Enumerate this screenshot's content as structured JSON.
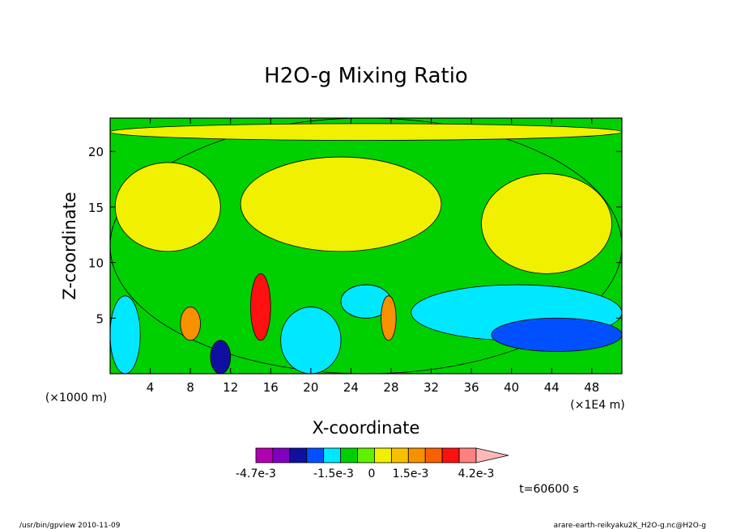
{
  "chart_data": {
    "type": "heatmap",
    "title": "H2O-g Mixing Ratio",
    "xlabel": "X-coordinate",
    "ylabel": "Z-coordinate",
    "x_unit_left": "(×1000 m)",
    "x_unit_right": "(×1E4 m)",
    "xlim": [
      0,
      51
    ],
    "ylim": [
      0,
      23
    ],
    "x_ticks": [
      "4",
      "8",
      "12",
      "16",
      "20",
      "24",
      "28",
      "32",
      "36",
      "40",
      "44",
      "48"
    ],
    "y_ticks": [
      "5",
      "10",
      "15",
      "20"
    ],
    "colorbar": {
      "colors": [
        "#b000b0",
        "#8000c0",
        "#1010a0",
        "#0050ff",
        "#00e8ff",
        "#00d000",
        "#60f000",
        "#f0f000",
        "#f8c000",
        "#f89000",
        "#f86000",
        "#ff1010",
        "#ff8080",
        "#ffb8b8"
      ],
      "labels": [
        "-4.7e-3",
        "-1.5e-3",
        "0",
        "1.5e-3",
        "4.2e-3"
      ],
      "extends": "right"
    },
    "time_label": "t=60600 s",
    "footer_left": "/usr/bin/gpview  2010-11-09",
    "footer_right": "arare-earth-reikyaku2K_H2O-g.nc@H2O-g",
    "field_regions": [
      {
        "level": "green",
        "x": [
          0,
          51
        ],
        "z": [
          0,
          23
        ]
      },
      {
        "level": "yellow",
        "x": [
          0.5,
          11
        ],
        "z": [
          11,
          19
        ]
      },
      {
        "level": "yellow",
        "x": [
          13,
          33
        ],
        "z": [
          11,
          19.5
        ]
      },
      {
        "level": "yellow",
        "x": [
          37,
          50
        ],
        "z": [
          9,
          18
        ]
      },
      {
        "level": "yellow",
        "x": [
          0,
          51
        ],
        "z": [
          21,
          22.5
        ]
      },
      {
        "level": "cyan",
        "x": [
          0,
          3
        ],
        "z": [
          0,
          7
        ]
      },
      {
        "level": "cyan",
        "x": [
          23,
          28
        ],
        "z": [
          5,
          8
        ]
      },
      {
        "level": "cyan",
        "x": [
          30,
          51
        ],
        "z": [
          3,
          8
        ]
      },
      {
        "level": "cyan",
        "x": [
          17,
          23
        ],
        "z": [
          0,
          6
        ]
      },
      {
        "level": "blue",
        "x": [
          38,
          51
        ],
        "z": [
          2,
          5
        ]
      },
      {
        "level": "navy",
        "x": [
          10,
          12
        ],
        "z": [
          0,
          3
        ]
      },
      {
        "level": "red",
        "x": [
          14,
          16
        ],
        "z": [
          3,
          9
        ]
      },
      {
        "level": "orange",
        "x": [
          27,
          28.5
        ],
        "z": [
          3,
          7
        ]
      },
      {
        "level": "orange",
        "x": [
          7,
          9
        ],
        "z": [
          3,
          6
        ]
      }
    ]
  }
}
